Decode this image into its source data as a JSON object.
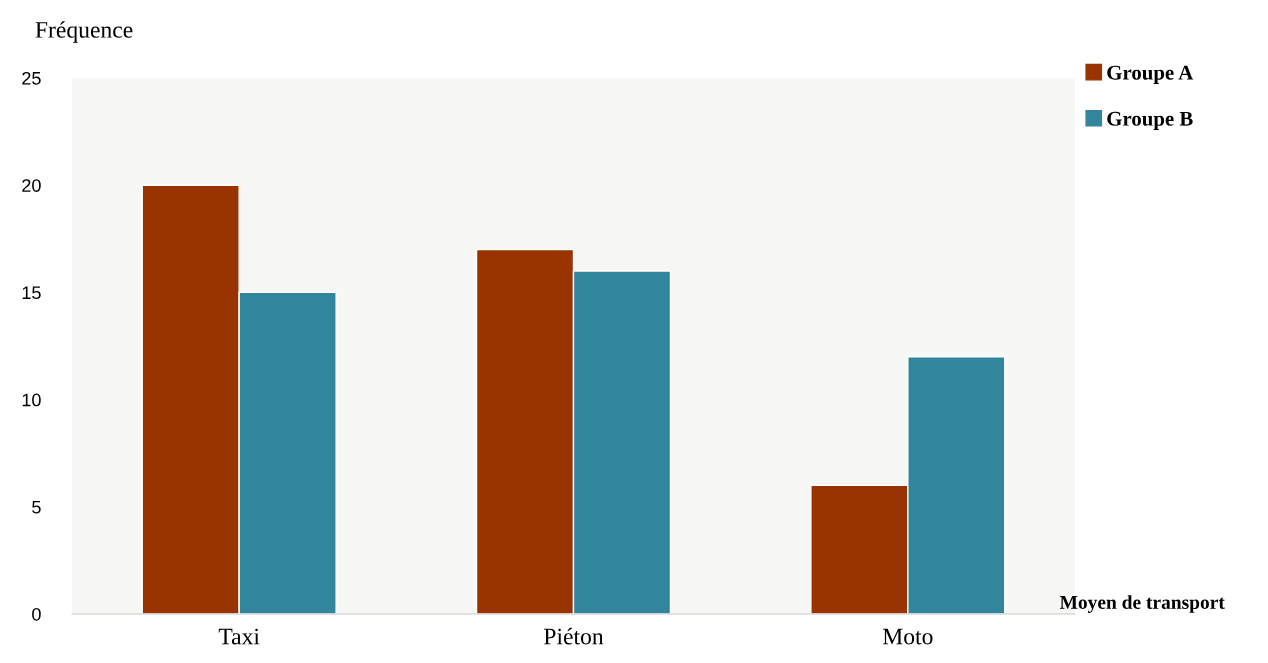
{
  "chart_data": {
    "type": "bar",
    "xlabel": "Moyen de transport",
    "ylabel": "Fréquence",
    "categories": [
      "Taxi",
      "Piéton",
      "Moto"
    ],
    "series": [
      {
        "name": "Groupe A",
        "color": "#993300",
        "values": [
          20,
          17,
          6
        ]
      },
      {
        "name": "Groupe B",
        "color": "#31859c",
        "values": [
          15,
          16,
          12
        ]
      }
    ],
    "ylim": [
      0,
      25
    ],
    "yticks": [
      0,
      5,
      10,
      15,
      20,
      25
    ],
    "grid": false,
    "legend": "top right"
  }
}
